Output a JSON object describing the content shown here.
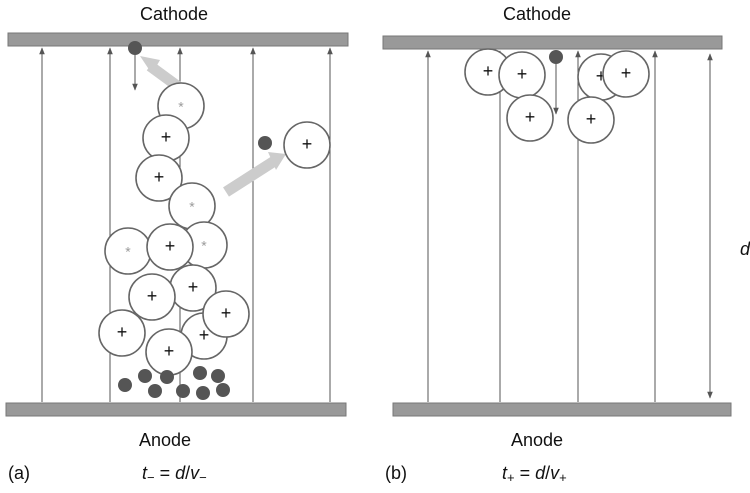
{
  "panels": [
    {
      "top_label": "Cathode",
      "bottom_label": "Anode",
      "tag": "(a)",
      "formula": {
        "var": "t",
        "var_sub": "−",
        "eq": " = ",
        "num": "d",
        "slash": "/",
        "den": "v",
        "den_sub": "−"
      }
    },
    {
      "top_label": "Cathode",
      "bottom_label": "Anode",
      "tag": "(b)",
      "formula": {
        "var": "t",
        "var_sub": "+",
        "eq": " = ",
        "num": "d",
        "slash": "/",
        "den": "v",
        "den_sub": "+"
      }
    }
  ],
  "distance_label": "d",
  "symbols": {
    "cation": "+",
    "excited": "*"
  }
}
